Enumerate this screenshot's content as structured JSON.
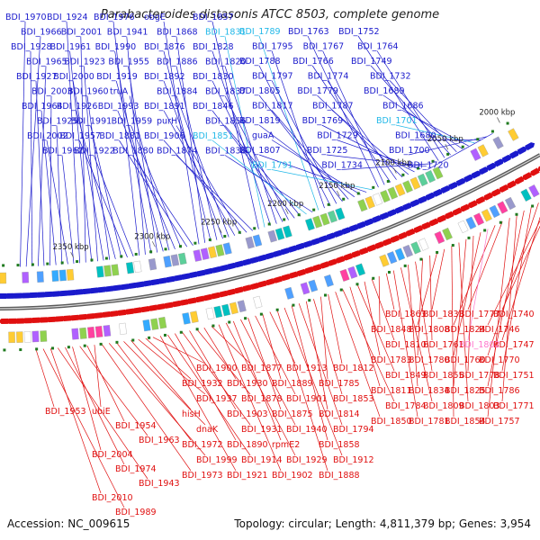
{
  "title": "Parabacteroides distasonis ATCC 8503, complete genome",
  "footer": {
    "accession": "Accession: NC_009615",
    "stats": "Topology: circular; Length: 4,811,379 bp; Genes: 3,954"
  },
  "colors": {
    "top_strand": "#1a1acc",
    "bottom_strand": "#e01010",
    "highlight": "#22b8e8",
    "pink_label": "#ff77cc",
    "axis": "#888888",
    "tick_dot": "#1f7a1f"
  },
  "kbp_ticks": [
    "2000 kbp",
    "2050 kbp",
    "2100 kbp",
    "2150 kbp",
    "2200 kbp",
    "2250 kbp",
    "2300 kbp",
    "2350 kbp"
  ],
  "top_labels": [
    {
      "t": "BDI_1970",
      "c": "blue"
    },
    {
      "t": "BDI_1966",
      "c": "blue"
    },
    {
      "t": "BDI_1928",
      "c": "blue"
    },
    {
      "t": "BDI_1965",
      "c": "blue"
    },
    {
      "t": "BDI_1927",
      "c": "blue"
    },
    {
      "t": "BDI_2003",
      "c": "blue"
    },
    {
      "t": "BDI_1964",
      "c": "blue"
    },
    {
      "t": "BDI_1925",
      "c": "blue"
    },
    {
      "t": "BDI_2002",
      "c": "blue"
    },
    {
      "t": "BDI_1962",
      "c": "blue"
    },
    {
      "t": "BDI_1924",
      "c": "blue"
    },
    {
      "t": "BDI_2001",
      "c": "blue"
    },
    {
      "t": "BDI_1961",
      "c": "blue"
    },
    {
      "t": "BDI_1923",
      "c": "blue"
    },
    {
      "t": "BDI_2000",
      "c": "blue"
    },
    {
      "t": "BDI_1960",
      "c": "blue"
    },
    {
      "t": "BDI_1926",
      "c": "blue"
    },
    {
      "t": "BDI_1991",
      "c": "blue"
    },
    {
      "t": "BDI_1957",
      "c": "blue"
    },
    {
      "t": "BDI_1922",
      "c": "blue"
    },
    {
      "t": "BDI_1976",
      "c": "blue"
    },
    {
      "t": "BDI_1941",
      "c": "blue"
    },
    {
      "t": "BDI_1990",
      "c": "blue"
    },
    {
      "t": "BDI_1955",
      "c": "blue"
    },
    {
      "t": "BDI_1919",
      "c": "blue"
    },
    {
      "t": "truA",
      "c": "blue"
    },
    {
      "t": "BDI_1993",
      "c": "blue"
    },
    {
      "t": "BDI_1959",
      "c": "blue"
    },
    {
      "t": "BDI_1881",
      "c": "blue"
    },
    {
      "t": "BDI_1880",
      "c": "blue"
    },
    {
      "t": "obgE",
      "c": "blue"
    },
    {
      "t": "BDI_1868",
      "c": "blue"
    },
    {
      "t": "BDI_1876",
      "c": "blue"
    },
    {
      "t": "BDI_1886",
      "c": "blue"
    },
    {
      "t": "BDI_1892",
      "c": "blue"
    },
    {
      "t": "BDI_1884",
      "c": "blue"
    },
    {
      "t": "BDI_1891",
      "c": "blue"
    },
    {
      "t": "purH",
      "c": "blue"
    },
    {
      "t": "BDI_1906",
      "c": "blue"
    },
    {
      "t": "BDI_1874",
      "c": "blue"
    },
    {
      "t": "BDI_1857",
      "c": "blue"
    },
    {
      "t": "BDI_1831",
      "c": "cyan"
    },
    {
      "t": "BDI_1828",
      "c": "blue"
    },
    {
      "t": "BDI_1820",
      "c": "blue"
    },
    {
      "t": "BDI_1830",
      "c": "blue"
    },
    {
      "t": "BDI_1837",
      "c": "blue"
    },
    {
      "t": "BDI_1846",
      "c": "blue"
    },
    {
      "t": "BDI_1856",
      "c": "blue"
    },
    {
      "t": "BDI_1851",
      "c": "cyan"
    },
    {
      "t": "BDI_1838",
      "c": "blue"
    },
    {
      "t": "BDI_1789",
      "c": "cyan"
    },
    {
      "t": "BDI_1795",
      "c": "blue"
    },
    {
      "t": "BDI_1788",
      "c": "blue"
    },
    {
      "t": "BDI_1797",
      "c": "blue"
    },
    {
      "t": "BDI_1805",
      "c": "blue"
    },
    {
      "t": "BDI_1817",
      "c": "blue"
    },
    {
      "t": "BDI_1819",
      "c": "blue"
    },
    {
      "t": "guaA",
      "c": "blue"
    },
    {
      "t": "BDI_1807",
      "c": "blue"
    },
    {
      "t": "BDI_1791",
      "c": "cyan"
    },
    {
      "t": "BDI_1763",
      "c": "blue"
    },
    {
      "t": "BDI_1767",
      "c": "blue"
    },
    {
      "t": "BDI_1766",
      "c": "blue"
    },
    {
      "t": "BDI_1774",
      "c": "blue"
    },
    {
      "t": "BDI_1779",
      "c": "blue"
    },
    {
      "t": "BDI_1787",
      "c": "blue"
    },
    {
      "t": "BDI_1769",
      "c": "blue"
    },
    {
      "t": "BDI_1729",
      "c": "blue"
    },
    {
      "t": "BDI_1725",
      "c": "blue"
    },
    {
      "t": "BDI_1734",
      "c": "blue"
    },
    {
      "t": "BDI_1752",
      "c": "blue"
    },
    {
      "t": "BDI_1764",
      "c": "blue"
    },
    {
      "t": "BDI_1749",
      "c": "blue"
    },
    {
      "t": "BDI_1732",
      "c": "blue"
    },
    {
      "t": "BDI_1689",
      "c": "blue"
    },
    {
      "t": "BDI_1686",
      "c": "blue"
    },
    {
      "t": "BDI_1701",
      "c": "cyan"
    },
    {
      "t": "BDI_1680",
      "c": "blue"
    },
    {
      "t": "BDI_1700",
      "c": "blue"
    },
    {
      "t": "BDI_1720",
      "c": "blue"
    }
  ],
  "bottom_labels": [
    {
      "t": "BDI_1740",
      "c": "red"
    },
    {
      "t": "BDI_1746",
      "c": "red"
    },
    {
      "t": "BDI_1747",
      "c": "red"
    },
    {
      "t": "BDI_1770",
      "c": "red"
    },
    {
      "t": "BDI_1751",
      "c": "red"
    },
    {
      "t": "BDI_1786",
      "c": "red"
    },
    {
      "t": "BDI_1771",
      "c": "red"
    },
    {
      "t": "BDI_1757",
      "c": "red"
    },
    {
      "t": "BDI_1777",
      "c": "red"
    },
    {
      "t": "BDI_1824",
      "c": "red"
    },
    {
      "t": "BDI_1802",
      "c": "pink"
    },
    {
      "t": "BDI_1760",
      "c": "red"
    },
    {
      "t": "BDI_1778",
      "c": "red"
    },
    {
      "t": "BDI_1825",
      "c": "red"
    },
    {
      "t": "BDI_1803",
      "c": "red"
    },
    {
      "t": "BDI_1854",
      "c": "red"
    },
    {
      "t": "BDI_1833",
      "c": "red"
    },
    {
      "t": "BDI_1808",
      "c": "red"
    },
    {
      "t": "BDI_1761",
      "c": "red"
    },
    {
      "t": "BDI_1780",
      "c": "red"
    },
    {
      "t": "BDI_1855",
      "c": "red"
    },
    {
      "t": "BDI_1834",
      "c": "red"
    },
    {
      "t": "BDI_1809",
      "c": "red"
    },
    {
      "t": "BDI_1781",
      "c": "red"
    },
    {
      "t": "BDI_1863",
      "c": "red"
    },
    {
      "t": "BDI_1848",
      "c": "red"
    },
    {
      "t": "BDI_1810",
      "c": "red"
    },
    {
      "t": "BDI_1783",
      "c": "red"
    },
    {
      "t": "BDI_1849",
      "c": "red"
    },
    {
      "t": "BDI_1811",
      "c": "red"
    },
    {
      "t": "BDI_1784",
      "c": "red"
    },
    {
      "t": "BDI_1850",
      "c": "red"
    },
    {
      "t": "BDI_1812",
      "c": "red"
    },
    {
      "t": "BDI_1785",
      "c": "red"
    },
    {
      "t": "BDI_1853",
      "c": "red"
    },
    {
      "t": "BDI_1814",
      "c": "red"
    },
    {
      "t": "BDI_1794",
      "c": "red"
    },
    {
      "t": "BDI_1858",
      "c": "red"
    },
    {
      "t": "BDI_1912",
      "c": "red"
    },
    {
      "t": "BDI_1888",
      "c": "red"
    },
    {
      "t": "BDI_1913",
      "c": "red"
    },
    {
      "t": "BDI_1889",
      "c": "red"
    },
    {
      "t": "BDI_1901",
      "c": "red"
    },
    {
      "t": "BDI_1875",
      "c": "red"
    },
    {
      "t": "BDI_1940",
      "c": "red"
    },
    {
      "t": "rpmE2",
      "c": "red"
    },
    {
      "t": "BDI_1929",
      "c": "red"
    },
    {
      "t": "BDI_1902",
      "c": "red"
    },
    {
      "t": "BDI_1877",
      "c": "red"
    },
    {
      "t": "BDI_1930",
      "c": "red"
    },
    {
      "t": "BDI_1878",
      "c": "red"
    },
    {
      "t": "BDI_1903",
      "c": "red"
    },
    {
      "t": "BDI_1931",
      "c": "red"
    },
    {
      "t": "BDI_1890",
      "c": "red"
    },
    {
      "t": "BDI_1914",
      "c": "red"
    },
    {
      "t": "BDI_1921",
      "c": "red"
    },
    {
      "t": "BDI_1900",
      "c": "red"
    },
    {
      "t": "BDI_1932",
      "c": "red"
    },
    {
      "t": "BDI_1937",
      "c": "red"
    },
    {
      "t": "hisH",
      "c": "red"
    },
    {
      "t": "dnaK",
      "c": "red"
    },
    {
      "t": "BDI_1972",
      "c": "red"
    },
    {
      "t": "BDI_1999",
      "c": "red"
    },
    {
      "t": "BDI_1973",
      "c": "red"
    },
    {
      "t": "ubiE",
      "c": "red"
    },
    {
      "t": "BDI_1954",
      "c": "red"
    },
    {
      "t": "BDI_1963",
      "c": "red"
    },
    {
      "t": "BDI_2004",
      "c": "red"
    },
    {
      "t": "BDI_1974",
      "c": "red"
    },
    {
      "t": "BDI_1943",
      "c": "red"
    },
    {
      "t": "BDI_2010",
      "c": "red"
    },
    {
      "t": "BDI_1989",
      "c": "red"
    },
    {
      "t": "BDI_1953",
      "c": "red"
    }
  ]
}
